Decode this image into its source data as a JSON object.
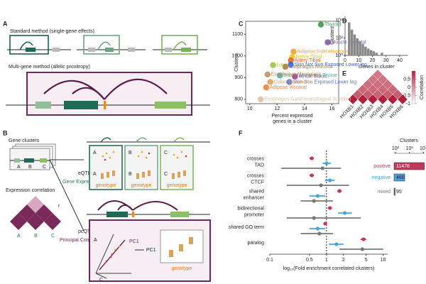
{
  "panels": {
    "A": {
      "label": "A",
      "standard": "Standard method (single-gene effects)",
      "multi": "Multi-gene method (allelic proxitropy)"
    },
    "B": {
      "label": "B",
      "gene_clusters": "Gene clusters",
      "eqtl": "eQTL",
      "gene_expression": "Gene Expression",
      "expression_correlation": "Expression correlation",
      "pcqtl": "pcQTL",
      "principal_component": "Principal Component",
      "genes": [
        "A",
        "B",
        "C"
      ],
      "r": "r",
      "genotype": "genotype",
      "pc1": "PC1"
    },
    "E": {
      "label": "E",
      "genes": [
        "HOXB1",
        "HOXB2",
        "HOXB3",
        "HOXB4",
        "HOXB5",
        "HOXB6"
      ],
      "correlation": [
        [
          1,
          0.45,
          0.35,
          0.3,
          0.25,
          0.2
        ],
        [
          0.45,
          1,
          0.45,
          0.35,
          0.3,
          0.25
        ],
        [
          0.35,
          0.45,
          1,
          0.4,
          0.35,
          0.3
        ],
        [
          0.3,
          0.35,
          0.4,
          1,
          0.45,
          0.35
        ],
        [
          0.25,
          0.3,
          0.35,
          0.45,
          1,
          0.45
        ],
        [
          0.2,
          0.25,
          0.3,
          0.35,
          0.45,
          1
        ]
      ],
      "clim": [
        -1,
        1
      ],
      "colorbar_ticks": [
        0.5,
        0,
        -0.5,
        -1
      ],
      "colorbar_label": "Correlation",
      "color_high": "#b0203a",
      "color_low": "#ffffff"
    }
  },
  "chart_data": [
    {
      "type": "scatter",
      "panel_label": "C",
      "xlabel": [
        "Percent expressed",
        "genes in a cluster"
      ],
      "ylabel": "Clusters",
      "xlim": [
        9.7,
        16.5
      ],
      "ylim": [
        780,
        1160
      ],
      "xticks": [
        10,
        12,
        14,
        16
      ],
      "yticks": [
        800,
        900,
        1000,
        1100
      ],
      "point_labels": [
        "Thyroid",
        "Muscle Skeletal",
        "Adipose Subcutaneous",
        "Nerve Tibial",
        "Artery Tibial",
        "Skin Not Sun Exposed Lower leg",
        "Lung",
        "Esophagus Mucosa",
        "Breast Mammary Tissue",
        "Whole Blood",
        "Esophagus Muscularis",
        "Skin Sun Exposed Lower leg",
        "Colon Transverse",
        "Adipose Visceral",
        "Esophagus Gastroesophageal Junction"
      ],
      "x": [
        15.2,
        15.7,
        13.2,
        13.1,
        13.0,
        13.0,
        11.7,
        12.6,
        12.2,
        13.3,
        11.3,
        12.9,
        11.5,
        11.2,
        10.8
      ],
      "values": [
        1145,
        1063,
        1020,
        995,
        980,
        960,
        958,
        950,
        910,
        905,
        915,
        880,
        880,
        855,
        800
      ],
      "colors": [
        "#3a9a4a",
        "#7b5ea7",
        "#f0a030",
        "#f5c518",
        "#e86030",
        "#4060c0",
        "#a0c040",
        "#b08040",
        "#40b0a0",
        "#a040a0",
        "#c09060",
        "#6070d0",
        "#e0a060",
        "#f08040",
        "#e0c0a0"
      ]
    },
    {
      "type": "histogram",
      "panel_label": "D",
      "xlabel": "Genes in cluster",
      "ylabel": "Clusters",
      "log_y": true,
      "color": "#888888",
      "bins": [
        2,
        4,
        6,
        8,
        10,
        12,
        14,
        16,
        18,
        20,
        22,
        24,
        26,
        28,
        30,
        32,
        34,
        36,
        38,
        40,
        42,
        44,
        46
      ],
      "values": [
        6000,
        900,
        250,
        90,
        40,
        20,
        10,
        6,
        4,
        3,
        2,
        1,
        2,
        1,
        1,
        0,
        0,
        1,
        0,
        0,
        1,
        1
      ],
      "xlim": [
        0,
        46
      ],
      "xticks": [
        0,
        10,
        20,
        30,
        40
      ],
      "ylim": [
        1,
        30000
      ],
      "yticks": [
        {
          "value": 1,
          "label": "10⁰"
        },
        {
          "value": 100,
          "label": "10²"
        },
        {
          "value": 10000,
          "label": "10⁴"
        }
      ]
    },
    {
      "type": "forest",
      "panel_label": "F",
      "xlabel": "log₁₀(Fold enrichment correlated clusters)",
      "log_x": true,
      "categories": [
        [
          "crosses",
          "TAD"
        ],
        [
          "crosses",
          "CTCF"
        ],
        [
          "shared",
          "enhancer"
        ],
        [
          "bidirectional",
          "promoter"
        ],
        [
          "shared GO term"
        ],
        [
          "paralog"
        ]
      ],
      "xlim": [
        0.1,
        12
      ],
      "xticks": [
        0.1,
        0.5,
        1,
        2,
        5,
        10
      ],
      "reference_line": 1,
      "legend_title": "Clusters",
      "cluster_xlim": [
        80,
        12000
      ],
      "cluster_xticks": [
        {
          "value": 100,
          "label": "10²"
        },
        {
          "value": 1000,
          "label": "10³"
        },
        {
          "value": 10000,
          "label": "10⁴"
        }
      ],
      "series": [
        {
          "name": "positive",
          "color": "#c0395a",
          "clusters": 11476,
          "values": [
            0.55,
            0.55,
            1.7,
            1.15,
            0.95,
            4.5
          ],
          "ci_low": [
            0.5,
            0.5,
            1.55,
            1.05,
            0.9,
            4.0
          ],
          "ci_high": [
            0.6,
            0.6,
            1.85,
            1.25,
            1.0,
            5.0
          ]
        },
        {
          "name": "negative",
          "color": "#4aa3d8",
          "clusters": 460,
          "values": [
            1.0,
            1.15,
            0.7,
            2.1,
            0.7,
            1.5
          ],
          "ci_low": [
            0.85,
            0.95,
            0.5,
            1.6,
            0.5,
            1.1
          ],
          "ci_high": [
            1.2,
            1.4,
            0.95,
            2.8,
            0.95,
            2.0
          ]
        },
        {
          "name": "mixed",
          "color": "#777777",
          "clusters": 95,
          "values": [
            0.85,
            0.8,
            0.6,
            0.6,
            0.75,
            4.3
          ],
          "ci_low": [
            0.16,
            0.2,
            0.35,
            0.2,
            0.35,
            1.7
          ],
          "ci_high": [
            1.8,
            2.5,
            1.3,
            4.0,
            1.3,
            10
          ]
        }
      ]
    }
  ]
}
